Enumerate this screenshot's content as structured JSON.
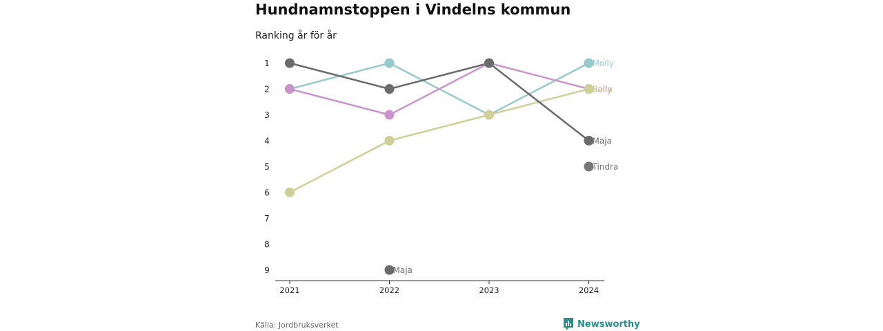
{
  "title": "Hundnamnstoppen i Vindelns kommun",
  "subtitle": "Ranking år för år",
  "source": "Källa: Jordbruksverket",
  "brand": "Newsworthy",
  "brand_icon": "newsworthy-logo-icon",
  "colors": {
    "Molly": "#98c9cc",
    "Sally": "#c994cc",
    "Bella": "#cfcf9a",
    "Maja": "#6b6b6e",
    "Tindra": "#777777",
    "brand": "#2a8f8c",
    "axis": "#333333"
  },
  "chart_data": {
    "type": "line",
    "x": [
      "2021",
      "2022",
      "2023",
      "2024"
    ],
    "ylim": [
      1,
      9
    ],
    "y_reversed": true,
    "y_ticks": [
      1,
      2,
      3,
      4,
      5,
      6,
      7,
      8,
      9
    ],
    "grid": false,
    "series": [
      {
        "name": "Molly",
        "values": [
          2,
          1,
          3,
          1
        ]
      },
      {
        "name": "Sally",
        "values": [
          2,
          3,
          1,
          2
        ]
      },
      {
        "name": "Bella",
        "values": [
          6,
          4,
          3,
          2
        ]
      },
      {
        "name": "Maja",
        "values": [
          1,
          2,
          1,
          4
        ]
      },
      {
        "name": "Tindra",
        "values": [
          null,
          null,
          null,
          5
        ]
      }
    ],
    "annotations": [
      {
        "text": "Maja",
        "x": "2022",
        "y": 9
      }
    ]
  }
}
